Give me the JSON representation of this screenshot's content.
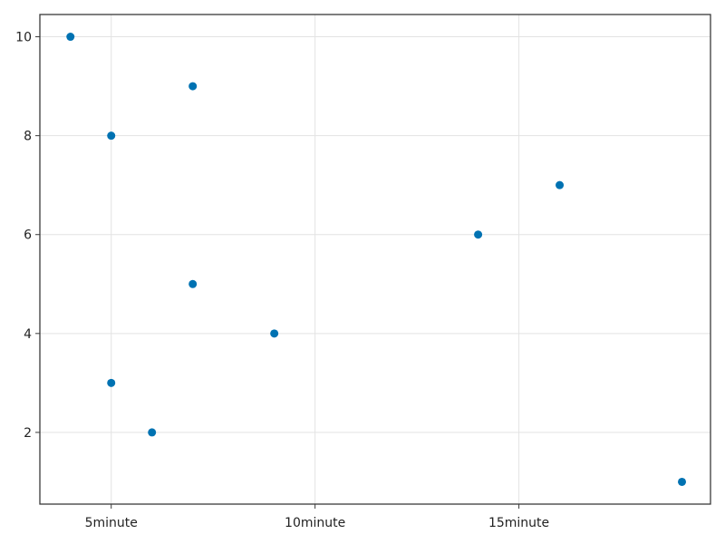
{
  "chart_data": {
    "type": "scatter",
    "title": "",
    "xlabel": "",
    "ylabel": "",
    "x_unit": "minute",
    "xlim": [
      3.25,
      19.7
    ],
    "ylim": [
      0.55,
      10.45
    ],
    "x_ticks": [
      {
        "value": 5,
        "label": "5minute"
      },
      {
        "value": 10,
        "label": "10minute"
      },
      {
        "value": 15,
        "label": "15minute"
      }
    ],
    "y_ticks": [
      {
        "value": 2,
        "label": "2"
      },
      {
        "value": 4,
        "label": "4"
      },
      {
        "value": 6,
        "label": "6"
      },
      {
        "value": 8,
        "label": "8"
      },
      {
        "value": 10,
        "label": "10"
      }
    ],
    "grid": true,
    "series": [
      {
        "color": "#0072b2",
        "points": [
          {
            "x": 4,
            "y": 10
          },
          {
            "x": 5,
            "y": 8
          },
          {
            "x": 5,
            "y": 3
          },
          {
            "x": 6,
            "y": 2
          },
          {
            "x": 7,
            "y": 9
          },
          {
            "x": 7,
            "y": 5
          },
          {
            "x": 9,
            "y": 4
          },
          {
            "x": 14,
            "y": 6
          },
          {
            "x": 16,
            "y": 7
          },
          {
            "x": 19,
            "y": 1
          }
        ]
      }
    ]
  }
}
